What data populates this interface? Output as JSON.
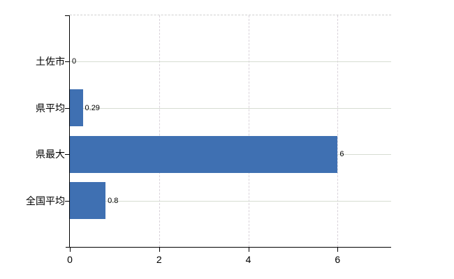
{
  "chart_data": {
    "type": "bar",
    "orientation": "horizontal",
    "title": "",
    "xlabel": "",
    "ylabel": "",
    "categories": [
      "土佐市",
      "県平均",
      "県最大",
      "全国平均"
    ],
    "values": [
      0,
      0.29,
      6,
      0.8
    ],
    "value_labels": [
      "0",
      "0.29",
      "6",
      "0.8"
    ],
    "xticks": [
      0,
      2,
      4,
      6
    ],
    "xtick_labels": [
      "0",
      "2",
      "4",
      "6"
    ],
    "xlim": [
      0,
      7.2
    ],
    "grid": {
      "horizontal": true,
      "vertical": true
    },
    "legend_position": "none",
    "colors": {
      "bar": "#3f70b2",
      "axis": "#000000",
      "horizontal_grid": "#d6ddd2",
      "vertical_grid": "#d9d2da",
      "top_border": "#d0d0d0",
      "background": "#ffffff",
      "text": "#000000"
    }
  }
}
